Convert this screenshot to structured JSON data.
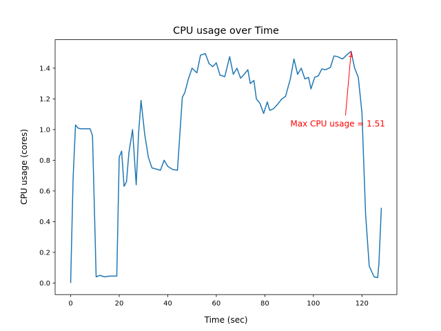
{
  "chart_data": {
    "type": "line",
    "title": "CPU usage over Time",
    "x_label": "Time (sec)",
    "y_label": "CPU usage (cores)",
    "x": [
      0,
      1,
      2,
      3,
      4,
      6,
      8,
      9,
      10.5,
      12,
      14,
      16,
      18,
      19,
      20,
      21,
      22,
      23,
      24,
      25.5,
      27,
      28,
      29,
      30.5,
      32,
      33.5,
      37,
      38.5,
      40,
      42,
      44,
      46,
      47,
      48.5,
      50,
      52,
      53.5,
      55.5,
      57,
      58.5,
      60,
      61.5,
      63.5,
      65.5,
      67,
      68.5,
      70,
      71.5,
      73,
      74,
      75.5,
      76.5,
      78,
      79.5,
      81,
      82,
      83.5,
      85,
      87,
      88.5,
      90.5,
      92,
      93.5,
      95,
      96.5,
      98,
      99,
      100.5,
      102,
      103.5,
      105,
      107,
      108.5,
      110,
      112,
      114,
      115.5,
      117,
      118.5,
      120,
      121.5,
      123,
      125,
      126.5,
      127,
      128
    ],
    "series": [
      {
        "name": "CPU usage",
        "color": "#1f77b4",
        "values": [
          0.0,
          0.68,
          1.03,
          1.01,
          1.005,
          1.005,
          1.005,
          0.96,
          0.04,
          0.05,
          0.04,
          0.045,
          0.045,
          0.045,
          0.82,
          0.86,
          0.63,
          0.66,
          0.85,
          1.0,
          0.64,
          0.98,
          1.19,
          0.97,
          0.82,
          0.75,
          0.735,
          0.8,
          0.76,
          0.74,
          0.735,
          1.21,
          1.24,
          1.33,
          1.4,
          1.37,
          1.485,
          1.495,
          1.43,
          1.41,
          1.435,
          1.355,
          1.345,
          1.475,
          1.36,
          1.4,
          1.335,
          1.36,
          1.39,
          1.3,
          1.32,
          1.2,
          1.17,
          1.105,
          1.18,
          1.125,
          1.135,
          1.16,
          1.2,
          1.215,
          1.33,
          1.46,
          1.36,
          1.4,
          1.33,
          1.34,
          1.265,
          1.34,
          1.35,
          1.395,
          1.39,
          1.405,
          1.48,
          1.475,
          1.46,
          1.49,
          1.51,
          1.4,
          1.34,
          1.11,
          0.45,
          0.11,
          0.04,
          0.035,
          0.13,
          0.49
        ]
      }
    ],
    "xlim": [
      -6.4,
      134.4
    ],
    "ylim": [
      -0.0755,
      1.5855
    ],
    "xticks": [
      0,
      20,
      40,
      60,
      80,
      100,
      120
    ],
    "yticks": [
      {
        "value": 0,
        "label": "0.0"
      },
      0.2,
      0.4,
      0.6,
      0.8,
      {
        "value": 1,
        "label": "1.0"
      },
      1.2,
      1.4
    ],
    "annotation": {
      "text": "Max CPU usage = 1.51",
      "x": 115.5,
      "y": 1.51,
      "color": "red"
    }
  }
}
